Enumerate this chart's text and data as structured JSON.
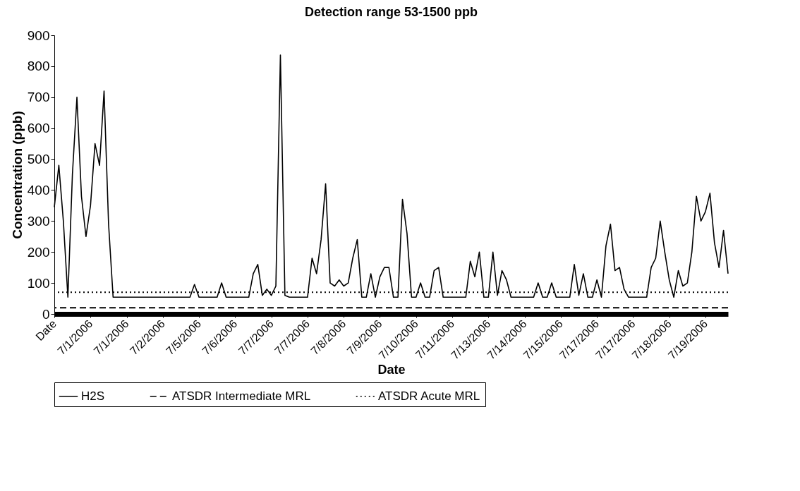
{
  "chart_data": {
    "type": "line",
    "title": "Detection range 53-1500 ppb",
    "xlabel": "Date",
    "ylabel": "Concentration (ppb)",
    "categories": [
      "Date",
      null,
      null,
      null,
      null,
      null,
      null,
      null,
      "7/1/2006",
      null,
      null,
      null,
      null,
      null,
      null,
      null,
      "7/1/2006",
      null,
      null,
      null,
      null,
      null,
      null,
      null,
      "7/2/2006",
      null,
      null,
      null,
      null,
      null,
      null,
      null,
      "7/5/2006",
      null,
      null,
      null,
      null,
      null,
      null,
      null,
      "7/6/2006",
      null,
      null,
      null,
      null,
      null,
      null,
      null,
      "7/7/2006",
      null,
      null,
      null,
      null,
      null,
      null,
      null,
      "7/7/2006",
      null,
      null,
      null,
      null,
      null,
      null,
      null,
      "7/8/2006",
      null,
      null,
      null,
      null,
      null,
      null,
      null,
      "7/9/2006",
      null,
      null,
      null,
      null,
      null,
      null,
      null,
      "7/10/2006",
      null,
      null,
      null,
      null,
      null,
      null,
      null,
      "7/11/2006",
      null,
      null,
      null,
      null,
      null,
      null,
      null,
      "7/13/2006",
      null,
      null,
      null,
      null,
      null,
      null,
      null,
      "7/14/2006",
      null,
      null,
      null,
      null,
      null,
      null,
      null,
      "7/15/2006",
      null,
      null,
      null,
      null,
      null,
      null,
      null,
      "7/17/2006",
      null,
      null,
      null,
      null,
      null,
      null,
      null,
      "7/17/2006",
      null,
      null,
      null,
      null,
      null,
      null,
      null,
      "7/18/2006",
      null,
      null,
      null,
      null,
      null,
      null,
      null,
      "7/19/2006",
      null,
      null,
      null,
      null,
      null
    ],
    "series": [
      {
        "name": "H2S",
        "color": "#000000",
        "line_style": "solid",
        "values": [
          345,
          480,
          300,
          54,
          450,
          700,
          380,
          250,
          350,
          550,
          480,
          720,
          290,
          54,
          54,
          54,
          54,
          54,
          54,
          54,
          54,
          54,
          54,
          54,
          54,
          54,
          54,
          54,
          54,
          54,
          54,
          95,
          54,
          54,
          54,
          54,
          54,
          100,
          54,
          54,
          54,
          54,
          54,
          54,
          130,
          160,
          60,
          80,
          60,
          90,
          836,
          60,
          54,
          54,
          54,
          54,
          54,
          180,
          130,
          240,
          420,
          100,
          90,
          110,
          90,
          100,
          180,
          240,
          54,
          54,
          130,
          54,
          120,
          150,
          150,
          54,
          54,
          370,
          260,
          54,
          54,
          100,
          54,
          54,
          140,
          150,
          54,
          54,
          54,
          54,
          54,
          54,
          170,
          120,
          200,
          54,
          54,
          200,
          60,
          140,
          110,
          54,
          54,
          54,
          54,
          54,
          54,
          100,
          54,
          54,
          100,
          54,
          54,
          54,
          54,
          160,
          60,
          130,
          54,
          54,
          110,
          54,
          220,
          290,
          140,
          150,
          80,
          54,
          54,
          54,
          54,
          54,
          150,
          180,
          300,
          200,
          110,
          54,
          140,
          90,
          100,
          200,
          380,
          300,
          330,
          390,
          230,
          150,
          270,
          130
        ]
      }
    ],
    "ylim": [
      0,
      900
    ],
    "yticks": [
      0,
      100,
      200,
      300,
      400,
      500,
      600,
      700,
      800,
      900
    ],
    "ref_lines": [
      {
        "axis": "y",
        "value": 20,
        "label": "ATSDR Intermediate MRL",
        "line_style": "dashed",
        "color": "#000000"
      },
      {
        "axis": "y",
        "value": 70,
        "label": "ATSDR Acute MRL",
        "line_style": "dotted",
        "color": "#000000"
      }
    ],
    "grid": false,
    "legend": "bottom"
  }
}
